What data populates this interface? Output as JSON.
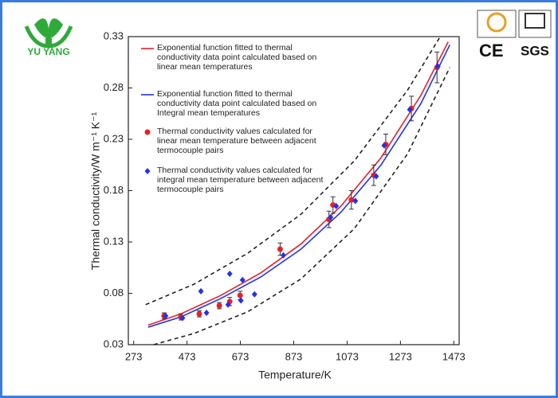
{
  "logos": {
    "brand": "YU YANG",
    "ce": "CE",
    "sgs": "SGS"
  },
  "chart_data": {
    "type": "scatter",
    "x_label": "Temperature/K",
    "y_label": "Thermal conductivity/W m⁻¹ K⁻¹",
    "xlim": [
      253,
      1493
    ],
    "xticks": [
      273,
      473,
      673,
      873,
      1073,
      1273,
      1473
    ],
    "ylim": [
      0.03,
      0.33
    ],
    "yticks": [
      0.03,
      0.08,
      0.13,
      0.18,
      0.23,
      0.28,
      0.33
    ],
    "series": [
      {
        "name": "Exponential function fitted to thermal conductivity data point calculated based on linear mean temperatures",
        "color": "#e8202a",
        "kind": "line",
        "x": [
          327,
          450,
          600,
          750,
          900,
          1050,
          1200,
          1350,
          1452
        ],
        "values": [
          0.049,
          0.06,
          0.078,
          0.1,
          0.128,
          0.165,
          0.212,
          0.273,
          0.325
        ]
      },
      {
        "name": "Exponential function fitted to thermal conductivity data point calculated based on Integral mean temperatures",
        "color": "#2233e6",
        "kind": "line",
        "x": [
          327,
          450,
          600,
          750,
          900,
          1050,
          1200,
          1350,
          1458
        ],
        "values": [
          0.047,
          0.057,
          0.075,
          0.096,
          0.123,
          0.159,
          0.205,
          0.265,
          0.322
        ]
      },
      {
        "name": "Thermal conductivity values calculated for linear mean temperature between adjacent termocouple pairs",
        "color": "#e8202a",
        "kind": "dot",
        "x": [
          387,
          450,
          519,
          594,
          633,
          672,
          822,
          1005,
          1020,
          1089,
          1173,
          1218,
          1314,
          1410
        ],
        "values": [
          0.058,
          0.057,
          0.06,
          0.068,
          0.072,
          0.078,
          0.123,
          0.152,
          0.166,
          0.171,
          0.195,
          0.225,
          0.26,
          0.3
        ],
        "errors": [
          0.003,
          0.003,
          0.003,
          0.003,
          0.004,
          0.004,
          0.006,
          0.008,
          0.008,
          0.009,
          0.01,
          0.01,
          0.012,
          0.015
        ]
      },
      {
        "name": "Thermal conductivity values calculated for integral mean temperature between adjacent termocouple pairs",
        "color": "#2233e6",
        "kind": "diamond",
        "x": [
          393,
          456,
          525,
          546,
          633,
          681,
          627,
          675,
          726,
          834,
          1011,
          1032,
          1104,
          1182,
          1212,
          1308,
          1413
        ],
        "values": [
          0.058,
          0.056,
          0.082,
          0.061,
          0.099,
          0.093,
          0.069,
          0.073,
          0.079,
          0.117,
          0.154,
          0.165,
          0.17,
          0.194,
          0.224,
          0.259,
          0.301
        ]
      }
    ],
    "bands": [
      {
        "style": "dashed",
        "color": "#222222",
        "x": [
          318,
          500,
          700,
          900,
          1100,
          1300,
          1422
        ],
        "values": [
          0.069,
          0.089,
          0.119,
          0.157,
          0.209,
          0.278,
          0.33
        ]
      },
      {
        "style": "dashed",
        "color": "#222222",
        "x": [
          348,
          500,
          700,
          900,
          1100,
          1300,
          1458
        ],
        "values": [
          0.03,
          0.041,
          0.062,
          0.094,
          0.143,
          0.216,
          0.3
        ]
      }
    ]
  }
}
